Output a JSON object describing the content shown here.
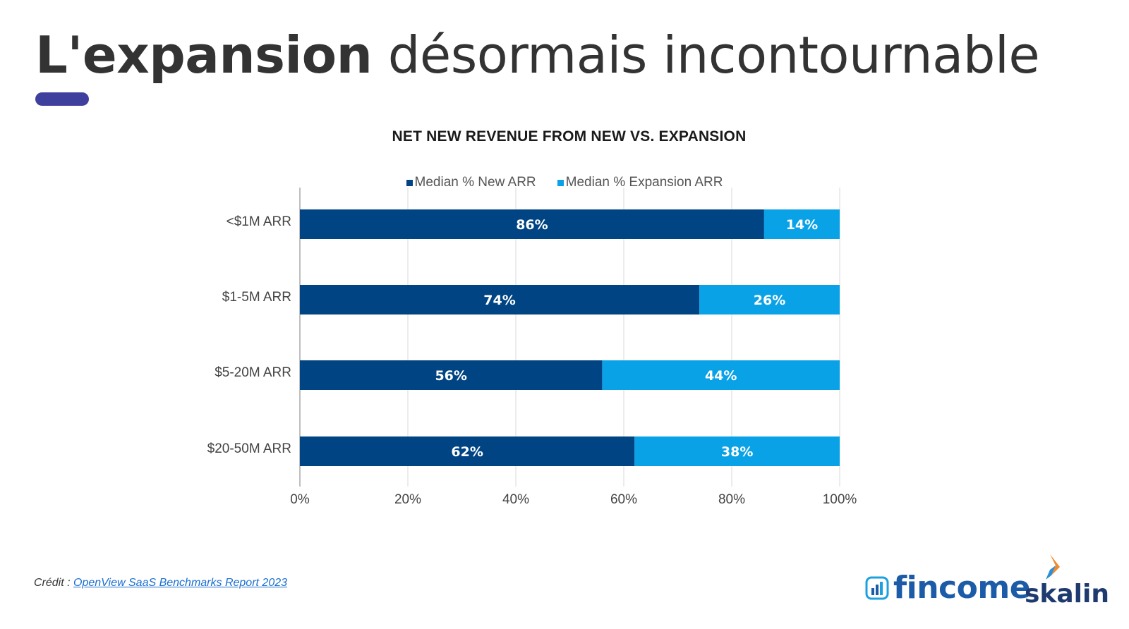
{
  "slide": {
    "title_bold": "L'expansion",
    "title_rest": " désormais incontournable",
    "accent_color": "#3f3f9e"
  },
  "credit": {
    "prefix": "Crédit : ",
    "link_text": "OpenView SaaS Benchmarks Report 2023"
  },
  "brands": {
    "fincome": "fincome",
    "skalin": "skalin"
  },
  "colors": {
    "new_arr": "#004483",
    "expansion_arr": "#0aa2e6",
    "grid": "#e6e6e6",
    "axis": "#bfbfbf"
  },
  "chart_data": {
    "type": "bar",
    "orientation": "horizontal",
    "stacked": true,
    "title": "NET NEW REVENUE FROM NEW VS. EXPANSION",
    "categories": [
      "<$1M ARR",
      "$1-5M ARR",
      "$5-20M ARR",
      "$20-50M ARR"
    ],
    "series": [
      {
        "name": "Median % New ARR",
        "values": [
          86,
          74,
          56,
          62
        ],
        "labels": [
          "86%",
          "74%",
          "56%",
          "62%"
        ]
      },
      {
        "name": "Median % Expansion ARR",
        "values": [
          14,
          26,
          44,
          38
        ],
        "labels": [
          "14%",
          "26%",
          "44%",
          "38%"
        ]
      }
    ],
    "x_ticks": [
      "0%",
      "20%",
      "40%",
      "60%",
      "80%",
      "100%"
    ],
    "xlim": [
      0,
      100
    ],
    "grid": true,
    "legend": "top"
  }
}
